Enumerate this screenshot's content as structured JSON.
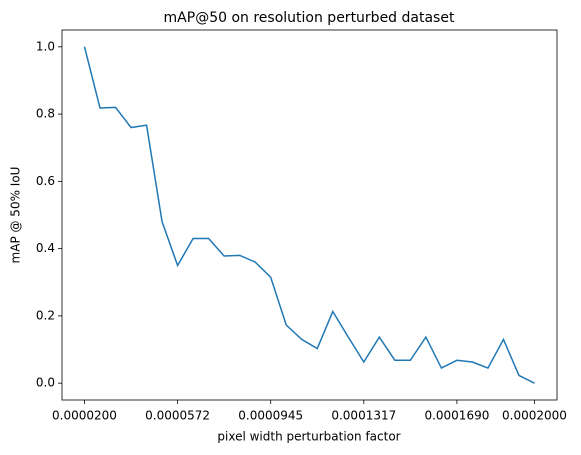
{
  "chart_data": {
    "type": "line",
    "title": "mAP@50 on resolution perturbed dataset",
    "x_label": "pixel width perturbation factor",
    "y_label": "mAP @ 50% IoU",
    "x": [
      2e-05,
      2.62069e-05,
      3.24138e-05,
      3.86207e-05,
      4.48276e-05,
      5.10345e-05,
      5.72414e-05,
      6.34483e-05,
      6.96552e-05,
      7.58621e-05,
      8.2069e-05,
      8.82759e-05,
      9.44828e-05,
      0.0001006897,
      0.0001068966,
      0.0001131034,
      0.0001193103,
      0.0001255172,
      0.0001317241,
      0.000137931,
      0.0001441379,
      0.0001503448,
      0.0001565517,
      0.0001627586,
      0.0001689655,
      0.0001751724,
      0.0001813793,
      0.0001875862,
      0.0001937931,
      0.0002
    ],
    "series": [
      {
        "color": "#1f77b4",
        "values": [
          1.0,
          0.818,
          0.82,
          0.76,
          0.767,
          0.48,
          0.35,
          0.43,
          0.43,
          0.378,
          0.38,
          0.36,
          0.315,
          0.173,
          0.13,
          0.103,
          0.213,
          0.137,
          0.063,
          0.137,
          0.068,
          0.068,
          0.137,
          0.045,
          0.068,
          0.063,
          0.045,
          0.13,
          0.023,
          0.0
        ]
      }
    ],
    "xlim": [
      1.1e-05,
      0.000209
    ],
    "ylim": [
      -0.05,
      1.05
    ],
    "xticks": [
      {
        "value": 2e-05,
        "label": "0.0000200"
      },
      {
        "value": 5.72414e-05,
        "label": "0.0000572"
      },
      {
        "value": 9.44828e-05,
        "label": "0.0000945"
      },
      {
        "value": 0.0001317241,
        "label": "0.0001317"
      },
      {
        "value": 0.0001689655,
        "label": "0.0001690"
      },
      {
        "value": 0.0002,
        "label": "0.0002000"
      }
    ],
    "yticks": [
      {
        "value": 0,
        "label": "0.0"
      },
      {
        "value": 0.2,
        "label": "0.2"
      },
      {
        "value": 0.4,
        "label": "0.4"
      },
      {
        "value": 0.6,
        "label": "0.6"
      },
      {
        "value": 0.8,
        "label": "0.8"
      },
      {
        "value": 1,
        "label": "1.0"
      }
    ]
  }
}
